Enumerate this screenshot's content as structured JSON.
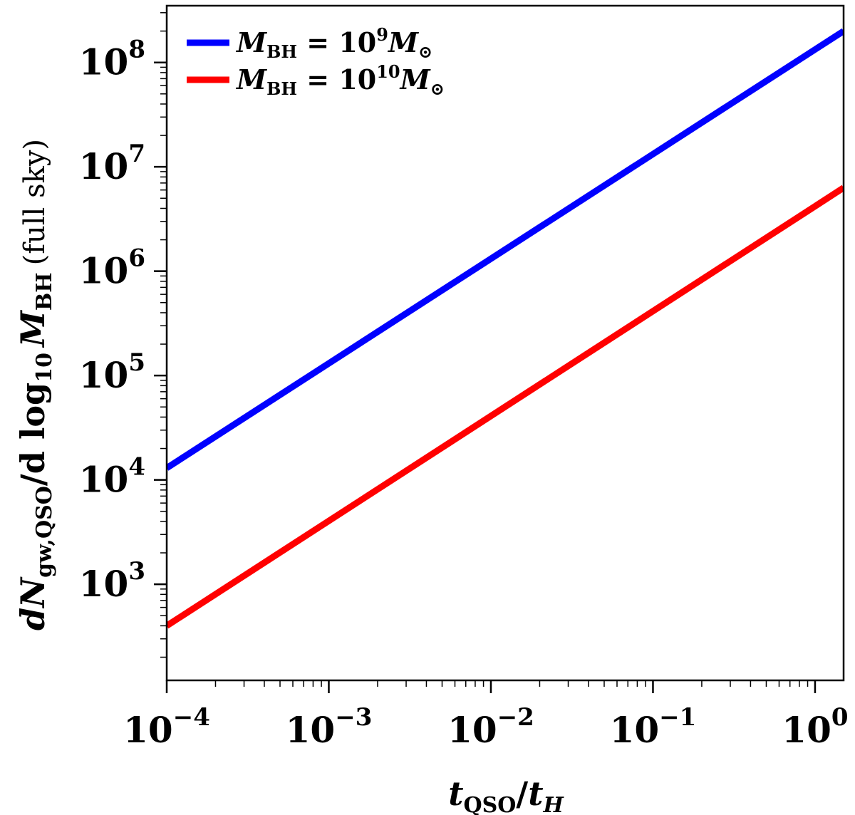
{
  "chart_data": {
    "type": "line",
    "xscale": "log",
    "yscale": "log",
    "xlim": [
      0.0001,
      1.5
    ],
    "ylim": [
      120,
      350000000
    ],
    "x_ticks": [
      {
        "value": 0.0001,
        "base": "10",
        "exp": "−4"
      },
      {
        "value": 0.001,
        "base": "10",
        "exp": "−3"
      },
      {
        "value": 0.01,
        "base": "10",
        "exp": "−2"
      },
      {
        "value": 0.1,
        "base": "10",
        "exp": "−1"
      },
      {
        "value": 1,
        "base": "10",
        "exp": "0"
      }
    ],
    "y_ticks": [
      {
        "value": 1000,
        "base": "10",
        "exp": "3"
      },
      {
        "value": 10000,
        "base": "10",
        "exp": "4"
      },
      {
        "value": 100000,
        "base": "10",
        "exp": "5"
      },
      {
        "value": 1000000,
        "base": "10",
        "exp": "6"
      },
      {
        "value": 10000000,
        "base": "10",
        "exp": "7"
      },
      {
        "value": 100000000,
        "base": "10",
        "exp": "8"
      }
    ],
    "xlabel": {
      "var": "t",
      "sub": "QSO",
      "slash": "/",
      "var2": "t",
      "sub2": "H"
    },
    "ylabel": {
      "main": "dN",
      "sub1": "gw,QSO",
      "mid": "/d log",
      "sub2": "10",
      "mvar": "M",
      "sub3": "BH",
      "tail": "(full sky)"
    },
    "series": [
      {
        "name": "M_BH = 10^9 M_sun",
        "legend": {
          "var": "M",
          "sub": "BH",
          "eq": " = 10",
          "exp": "9",
          "var2": "M",
          "sun": "⊙"
        },
        "color": "#0000ff",
        "x": [
          0.0001,
          1.5
        ],
        "y": [
          13000,
          200000000
        ]
      },
      {
        "name": "M_BH = 10^10 M_sun",
        "legend": {
          "var": "M",
          "sub": "BH",
          "eq": " = 10",
          "exp": "10",
          "var2": "M",
          "sun": "⊙"
        },
        "color": "#ff0000",
        "x": [
          0.0001,
          1.5
        ],
        "y": [
          400,
          6300000
        ]
      }
    ],
    "legend_position": "top-left",
    "grid": false
  }
}
